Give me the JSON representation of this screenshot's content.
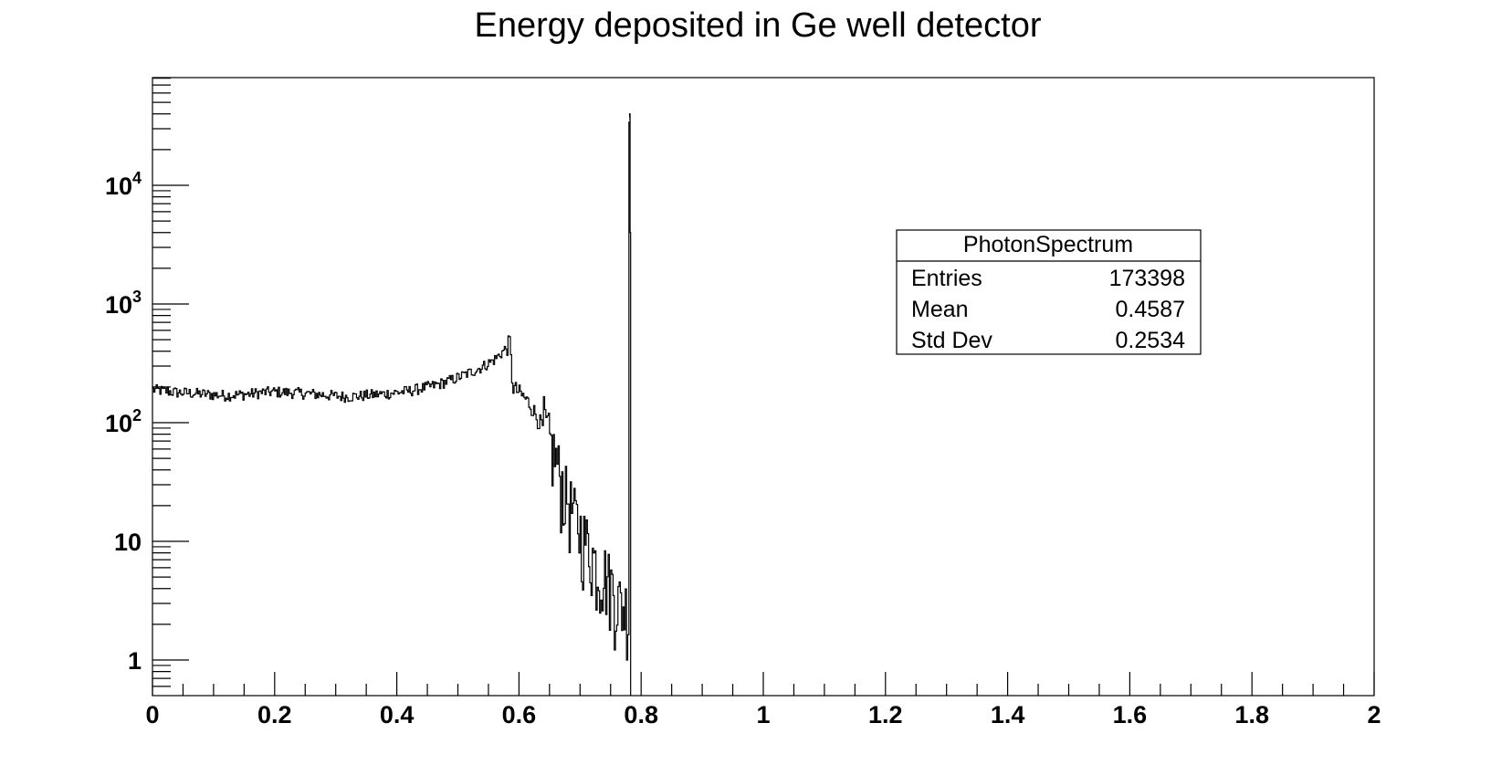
{
  "chart_data": {
    "type": "histogram",
    "title": "Energy deposited in Ge well detector",
    "xlabel": "",
    "ylabel": "",
    "xlim": [
      0,
      2
    ],
    "ylim": [
      0.5,
      80000
    ],
    "yscale": "log",
    "grid": false,
    "x_tick_labels": [
      "0",
      "0.2",
      "0.4",
      "0.6",
      "0.8",
      "1",
      "1.2",
      "1.4",
      "1.6",
      "1.8",
      "2"
    ],
    "y_tick_labels": [
      {
        "value": 1,
        "base": "1",
        "exp": ""
      },
      {
        "value": 10,
        "base": "10",
        "exp": ""
      },
      {
        "value": 100,
        "base": "10",
        "exp": "2"
      },
      {
        "value": 1000,
        "base": "10",
        "exp": "3"
      },
      {
        "value": 10000,
        "base": "10",
        "exp": "4"
      }
    ],
    "series": [
      {
        "points": [
          [
            0.0,
            190
          ],
          [
            0.02,
            185
          ],
          [
            0.04,
            180
          ],
          [
            0.06,
            178
          ],
          [
            0.08,
            175
          ],
          [
            0.1,
            172
          ],
          [
            0.12,
            170
          ],
          [
            0.14,
            172
          ],
          [
            0.16,
            175
          ],
          [
            0.18,
            180
          ],
          [
            0.2,
            182
          ],
          [
            0.22,
            180
          ],
          [
            0.24,
            178
          ],
          [
            0.26,
            175
          ],
          [
            0.28,
            172
          ],
          [
            0.3,
            168
          ],
          [
            0.32,
            166
          ],
          [
            0.34,
            168
          ],
          [
            0.36,
            172
          ],
          [
            0.38,
            175
          ],
          [
            0.4,
            180
          ],
          [
            0.42,
            185
          ],
          [
            0.44,
            195
          ],
          [
            0.46,
            205
          ],
          [
            0.48,
            220
          ],
          [
            0.5,
            240
          ],
          [
            0.52,
            265
          ],
          [
            0.54,
            295
          ],
          [
            0.56,
            340
          ],
          [
            0.57,
            380
          ],
          [
            0.58,
            430
          ],
          [
            0.585,
            480
          ],
          [
            0.59,
            200
          ],
          [
            0.6,
            180
          ],
          [
            0.61,
            160
          ],
          [
            0.62,
            140
          ],
          [
            0.63,
            110
          ],
          [
            0.64,
            90
          ],
          [
            0.65,
            60
          ],
          [
            0.66,
            45
          ],
          [
            0.67,
            28
          ],
          [
            0.68,
            20
          ],
          [
            0.69,
            15
          ],
          [
            0.7,
            11
          ],
          [
            0.71,
            9
          ],
          [
            0.72,
            7
          ],
          [
            0.73,
            5
          ],
          [
            0.74,
            5
          ],
          [
            0.75,
            4
          ],
          [
            0.76,
            3
          ],
          [
            0.77,
            2.5
          ],
          [
            0.775,
            2.5
          ],
          [
            0.78,
            2
          ],
          [
            0.781,
            40000
          ],
          [
            0.782,
            4000
          ],
          [
            0.783,
            0.5
          ]
        ]
      }
    ],
    "stats_box": {
      "title": "PhotonSpectrum",
      "placement": "top-right",
      "rows": [
        {
          "label": "Entries",
          "value": "173398"
        },
        {
          "label": "Mean",
          "value": "0.4587"
        },
        {
          "label": "Std Dev",
          "value": "0.2534"
        }
      ]
    }
  }
}
